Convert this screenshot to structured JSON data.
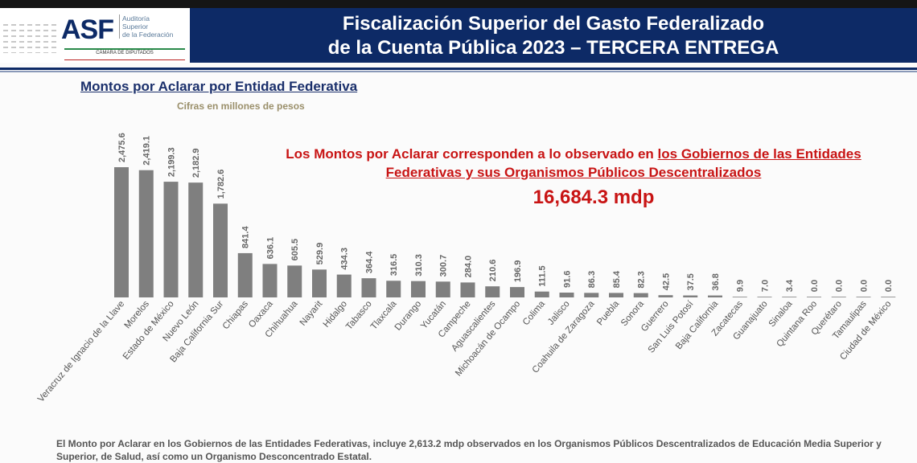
{
  "header": {
    "logo_text": "ASF",
    "logo_sub": [
      "Auditoría",
      "Superior",
      "de la Federación"
    ],
    "logo_chamber": "CÁMARA DE DIPUTADOS",
    "title_line1": "Fiscalización Superior del Gasto Federalizado",
    "title_line2": "de la Cuenta Pública 2023 – TERCERA ENTREGA",
    "brand_color": "#0d2a66"
  },
  "note": {
    "part1": "Los Montos por Aclarar corresponden a lo observado en ",
    "part2": "los Gobiernos de las Entidades Federativas y sus Organismos Públicos Descentralizados",
    "total": "16,684.3 mdp",
    "color": "#c81414"
  },
  "footer": {
    "text": "El Monto por Aclarar en los Gobiernos de las Entidades Federativas, incluye 2,613.2 mdp observados en los Organismos Públicos Descentralizados de Educación Media Superior y Superior, de Salud, así como un Organismo Desconcentrado Estatal."
  },
  "chart_data": {
    "type": "bar",
    "title": "Montos por Aclarar por Entidad Federativa",
    "subtitle": "Cifras en millones de pesos",
    "bar_color": "#7f7f7f",
    "grid": false,
    "categories": [
      "Veracruz de Ignacio de la Llave",
      "Morelos",
      "Estado de México",
      "Nuevo León",
      "Baja California Sur",
      "Chiapas",
      "Oaxaca",
      "Chihuahua",
      "Nayarit",
      "Hidalgo",
      "Tabasco",
      "Tlaxcala",
      "Durango",
      "Yucatán",
      "Campeche",
      "Aguascalientes",
      "Michoacán de Ocampo",
      "Colima",
      "Jalisco",
      "Coahuila de Zaragoza",
      "Puebla",
      "Sonora",
      "Guerrero",
      "San Luis Potosí",
      "Baja California",
      "Zacatecas",
      "Guanajuato",
      "Sinaloa",
      "Quintana Roo",
      "Querétaro",
      "Tamaulipas",
      "Ciudad de México"
    ],
    "values": [
      2475.6,
      2419.1,
      2199.3,
      2182.9,
      1782.6,
      841.4,
      636.1,
      605.5,
      529.9,
      434.3,
      364.4,
      316.5,
      310.3,
      300.7,
      284.0,
      210.6,
      196.9,
      111.5,
      91.6,
      86.3,
      85.4,
      82.3,
      42.5,
      37.5,
      36.8,
      9.9,
      7.0,
      3.4,
      0.0,
      0.0,
      0.0,
      0.0
    ],
    "labels": [
      "2,475.6",
      "2,419.1",
      "2,199.3",
      "2,182.9",
      "1,782.6",
      "841.4",
      "636.1",
      "605.5",
      "529.9",
      "434.3",
      "364.4",
      "316.5",
      "310.3",
      "300.7",
      "284.0",
      "210.6",
      "196.9",
      "111.5",
      "91.6",
      "86.3",
      "85.4",
      "82.3",
      "42.5",
      "37.5",
      "36.8",
      "9.9",
      "7.0",
      "3.4",
      "0.0",
      "0.0",
      "0.0",
      "0.0"
    ]
  }
}
